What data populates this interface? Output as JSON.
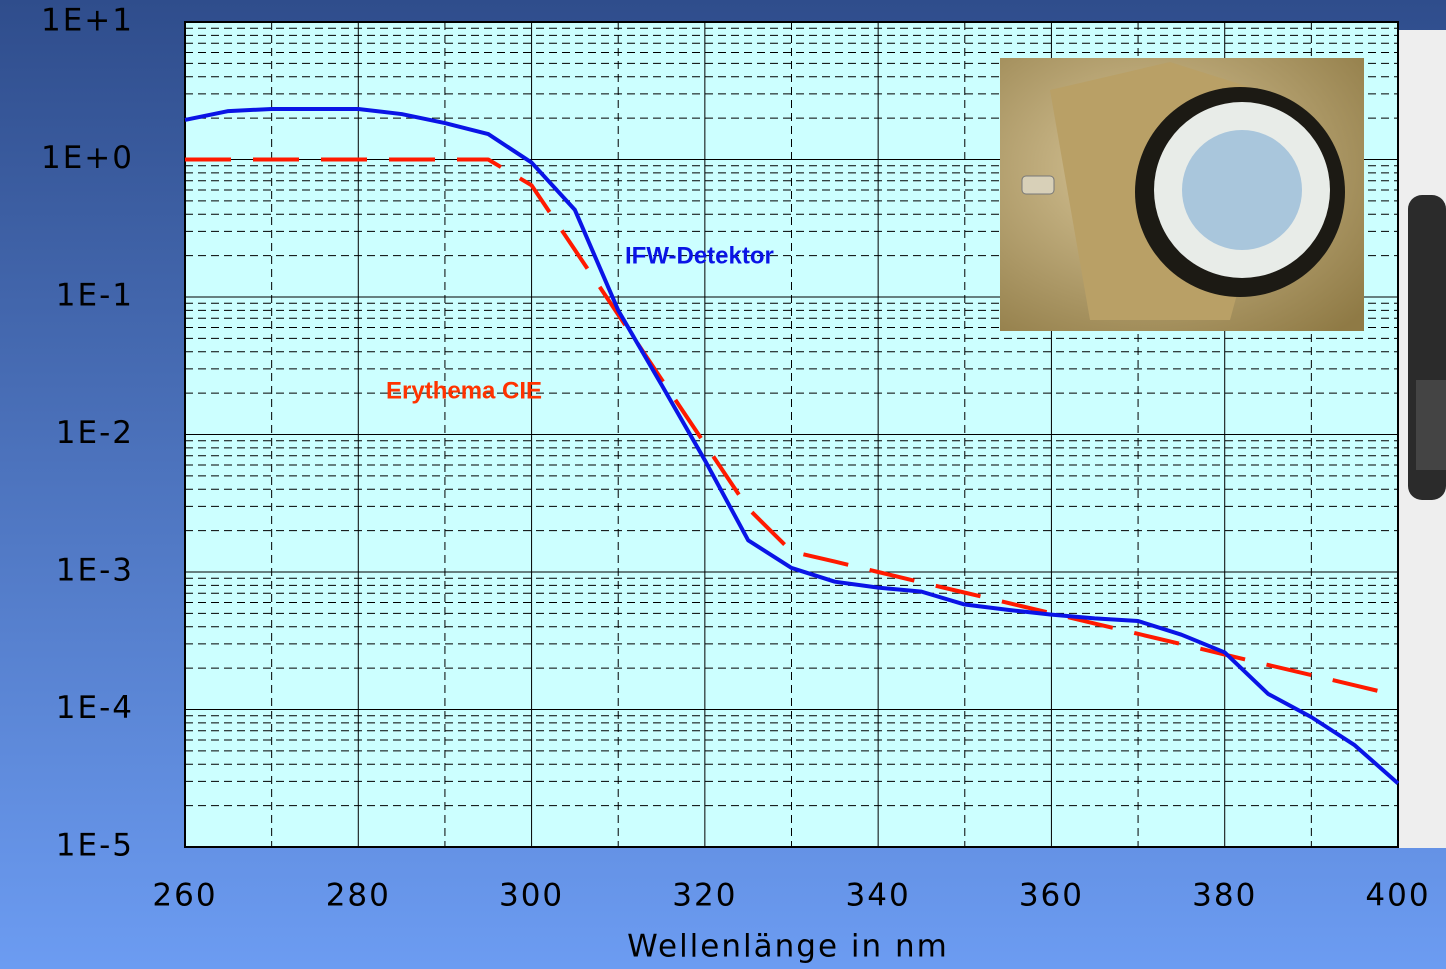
{
  "chart_data": {
    "type": "line",
    "x_label": "Wellenlänge in nm",
    "annotations": [
      "IFW-Detektor",
      "Erythema CIE"
    ],
    "x": [
      260,
      265,
      270,
      275,
      280,
      285,
      290,
      295,
      300,
      305,
      310,
      315,
      320,
      325,
      330,
      335,
      340,
      345,
      350,
      355,
      360,
      365,
      370,
      375,
      380,
      385,
      390,
      395,
      400
    ],
    "series": [
      {
        "name": "IFW-Detektor",
        "color": "#0a14e6",
        "line_style": "solid",
        "values": [
          1.94,
          2.25,
          2.33,
          2.33,
          2.33,
          2.14,
          1.84,
          1.53,
          0.95,
          0.43,
          0.08,
          0.023,
          0.0065,
          0.0017,
          0.00107,
          0.00085,
          0.00077,
          0.00072,
          0.00058,
          0.00053,
          0.00049,
          0.00046,
          0.00044,
          0.00035,
          0.00026,
          0.00013,
          8.8e-05,
          5.5e-05,
          2.9e-05
        ]
      },
      {
        "name": "Erythema CIE",
        "color": "#ff1a00",
        "line_style": "dashed",
        "values": [
          1,
          1,
          1,
          1,
          1,
          1,
          1,
          1,
          0.649,
          0.22,
          0.0745,
          0.0252,
          0.00855,
          0.0029,
          0.00141,
          0.00119,
          0.001,
          0.00084,
          0.000708,
          0.000596,
          0.000501,
          0.000422,
          0.000355,
          0.000299,
          0.000251,
          0.000211,
          0.000178,
          0.00015,
          0.000126
        ]
      }
    ],
    "xlim": [
      260,
      400
    ],
    "xticks": [
      260,
      280,
      300,
      320,
      340,
      360,
      380,
      400
    ],
    "ylim": [
      1e-05,
      10
    ],
    "yticks": [
      {
        "value": 10,
        "label": "1E+1"
      },
      {
        "value": 1,
        "label": "1E+0"
      },
      {
        "value": 0.1,
        "label": "1E-1"
      },
      {
        "value": 0.01,
        "label": "1E-2"
      },
      {
        "value": 0.001,
        "label": "1E-3"
      },
      {
        "value": 0.0001,
        "label": "1E-4"
      },
      {
        "value": 1e-05,
        "label": "1E-5"
      }
    ],
    "y_scale": "log",
    "grid": true,
    "plot_background": "#ccffff"
  }
}
